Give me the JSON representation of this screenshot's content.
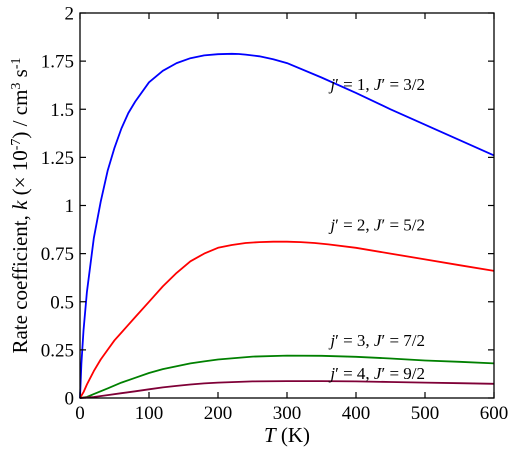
{
  "chart_data": {
    "type": "line",
    "xlabel": {
      "italic": "T",
      "rest": " (K)"
    },
    "ylabel": {
      "prefix": "Rate coefficient, ",
      "italic": "k",
      "mid": " (× 10",
      "exp": "-7",
      "post": ") / cm",
      "exp2": "3",
      "post2": " s",
      "exp3": "-1"
    },
    "xlim": [
      0,
      600
    ],
    "ylim": [
      0,
      2
    ],
    "x_ticks": [
      0,
      100,
      200,
      300,
      400,
      500,
      600
    ],
    "x_tick_labels": [
      "0",
      "100",
      "200",
      "300",
      "400",
      "500",
      "600"
    ],
    "y_ticks": [
      0,
      0.25,
      0.5,
      0.75,
      1,
      1.25,
      1.5,
      1.75,
      2
    ],
    "y_tick_labels": [
      "0",
      "0.25",
      "0.5",
      "0.75",
      "1",
      "1.25",
      "1.5",
      "1.75",
      "2"
    ],
    "grid": false,
    "series": [
      {
        "name": "j′ = 1, J′ = 3/2",
        "color": "#0000ff",
        "x": [
          0,
          2,
          5,
          10,
          20,
          30,
          40,
          50,
          60,
          70,
          80,
          100,
          120,
          140,
          160,
          180,
          200,
          220,
          230,
          240,
          260,
          280,
          300,
          350,
          400,
          450,
          500,
          550,
          600
        ],
        "y": [
          0,
          0.18,
          0.35,
          0.55,
          0.83,
          1.02,
          1.18,
          1.3,
          1.4,
          1.48,
          1.54,
          1.64,
          1.7,
          1.74,
          1.765,
          1.78,
          1.786,
          1.788,
          1.787,
          1.784,
          1.775,
          1.76,
          1.74,
          1.665,
          1.585,
          1.5,
          1.42,
          1.34,
          1.26
        ]
      },
      {
        "name": "j′ = 2, J′ = 5/2",
        "color": "#ff0000",
        "x": [
          0,
          5,
          10,
          20,
          30,
          40,
          50,
          60,
          80,
          100,
          120,
          140,
          160,
          180,
          200,
          220,
          240,
          260,
          280,
          300,
          320,
          340,
          360,
          400,
          450,
          500,
          550,
          600
        ],
        "y": [
          0,
          0.03,
          0.07,
          0.14,
          0.2,
          0.25,
          0.3,
          0.34,
          0.42,
          0.5,
          0.58,
          0.65,
          0.71,
          0.75,
          0.78,
          0.795,
          0.805,
          0.81,
          0.812,
          0.812,
          0.81,
          0.805,
          0.798,
          0.78,
          0.75,
          0.72,
          0.69,
          0.66
        ]
      },
      {
        "name": "j′ = 3, J′ = 7/2",
        "color": "#008000",
        "x": [
          0,
          10,
          20,
          40,
          60,
          80,
          100,
          120,
          140,
          160,
          180,
          200,
          250,
          300,
          350,
          400,
          450,
          500,
          550,
          600
        ],
        "y": [
          0,
          0.005,
          0.02,
          0.05,
          0.08,
          0.105,
          0.13,
          0.15,
          0.165,
          0.18,
          0.19,
          0.2,
          0.215,
          0.22,
          0.219,
          0.214,
          0.205,
          0.195,
          0.188,
          0.18
        ]
      },
      {
        "name": "j′ = 4, J′ = 9/2",
        "color": "#7f0037",
        "x": [
          0,
          20,
          40,
          60,
          80,
          100,
          120,
          140,
          160,
          180,
          200,
          250,
          300,
          350,
          400,
          450,
          500,
          550,
          600
        ],
        "y": [
          0,
          0.005,
          0.015,
          0.025,
          0.035,
          0.045,
          0.055,
          0.063,
          0.07,
          0.076,
          0.08,
          0.086,
          0.088,
          0.088,
          0.086,
          0.083,
          0.08,
          0.077,
          0.074
        ]
      }
    ],
    "annotations": [
      {
        "parts": [
          {
            "t": "j",
            "i": true
          },
          {
            "t": "′ = 1, "
          },
          {
            "t": "J",
            "i": true
          },
          {
            "t": "′ = 3/2"
          }
        ],
        "at": [
          500,
          1.6
        ]
      },
      {
        "parts": [
          {
            "t": "j",
            "i": true
          },
          {
            "t": "′ = 2, "
          },
          {
            "t": "J",
            "i": true
          },
          {
            "t": "′ = 5/2"
          }
        ],
        "at": [
          500,
          0.87
        ]
      },
      {
        "parts": [
          {
            "t": "j",
            "i": true
          },
          {
            "t": "′ = 3, "
          },
          {
            "t": "J",
            "i": true
          },
          {
            "t": "′ = 7/2"
          }
        ],
        "at": [
          500,
          0.27
        ]
      },
      {
        "parts": [
          {
            "t": "j",
            "i": true
          },
          {
            "t": "′ = 4, "
          },
          {
            "t": "J",
            "i": true
          },
          {
            "t": "′ = 9/2"
          }
        ],
        "at": [
          500,
          0.1
        ]
      }
    ]
  }
}
